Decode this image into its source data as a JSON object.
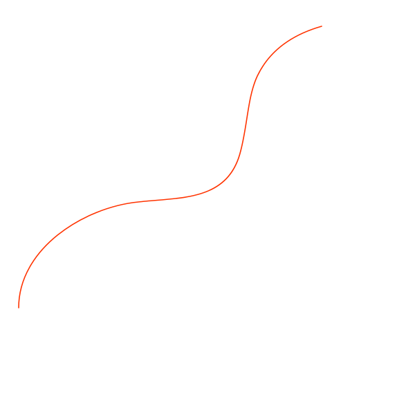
{
  "curve": {
    "stroke_color": "#ff3300"
  }
}
